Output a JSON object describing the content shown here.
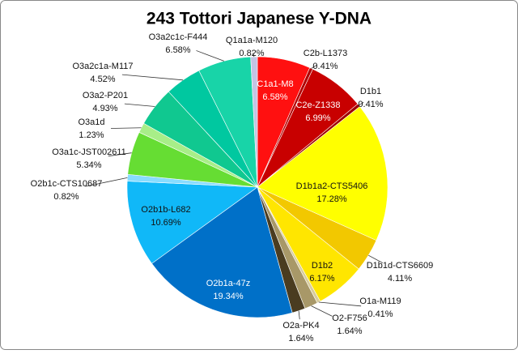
{
  "chart_data": {
    "type": "pie",
    "title": "243 Tottori Japanese Y-DNA",
    "categories": [
      "C1a1-M8",
      "C2b-L1373",
      "C2e-Z1338",
      "D1b1",
      "D1b1a2-CTS5406",
      "D1b1d-CTS6609",
      "D1b2",
      "O1a-M119",
      "O2-F756",
      "O2a-PK4",
      "O2b1a-47z",
      "O2b1b-L682",
      "O2b1c-CTS10687",
      "O3a1c-JST002611",
      "O3a1d",
      "O3a2-P201",
      "O3a2c1a-M117",
      "O3a2c1c-F444",
      "Q1a1a-M120"
    ],
    "values": [
      6.58,
      0.41,
      6.99,
      0.41,
      17.28,
      4.11,
      6.17,
      0.41,
      1.64,
      1.64,
      19.34,
      10.69,
      0.82,
      5.34,
      1.23,
      4.93,
      4.52,
      6.58,
      0.82
    ],
    "value_labels": [
      "6.58%",
      "0.41%",
      "6.99%",
      "0.41%",
      "17.28%",
      "4.11%",
      "6.17%",
      "0.41%",
      "1.64%",
      "1.64%",
      "19.34%",
      "10.69%",
      "0.82%",
      "5.34%",
      "1.23%",
      "4.93%",
      "4.52%",
      "6.58%",
      "0.82%"
    ],
    "colors": [
      "#ff1010",
      "#b00000",
      "#c80000",
      "#a00000",
      "#ffff00",
      "#f2c800",
      "#ffe600",
      "#d8cc9c",
      "#a89868",
      "#4a3c20",
      "#0070c8",
      "#10b8f8",
      "#88dcff",
      "#66dd33",
      "#a8ee88",
      "#10c890",
      "#00c8a0",
      "#18d4a8",
      "#c4c4e4"
    ]
  }
}
